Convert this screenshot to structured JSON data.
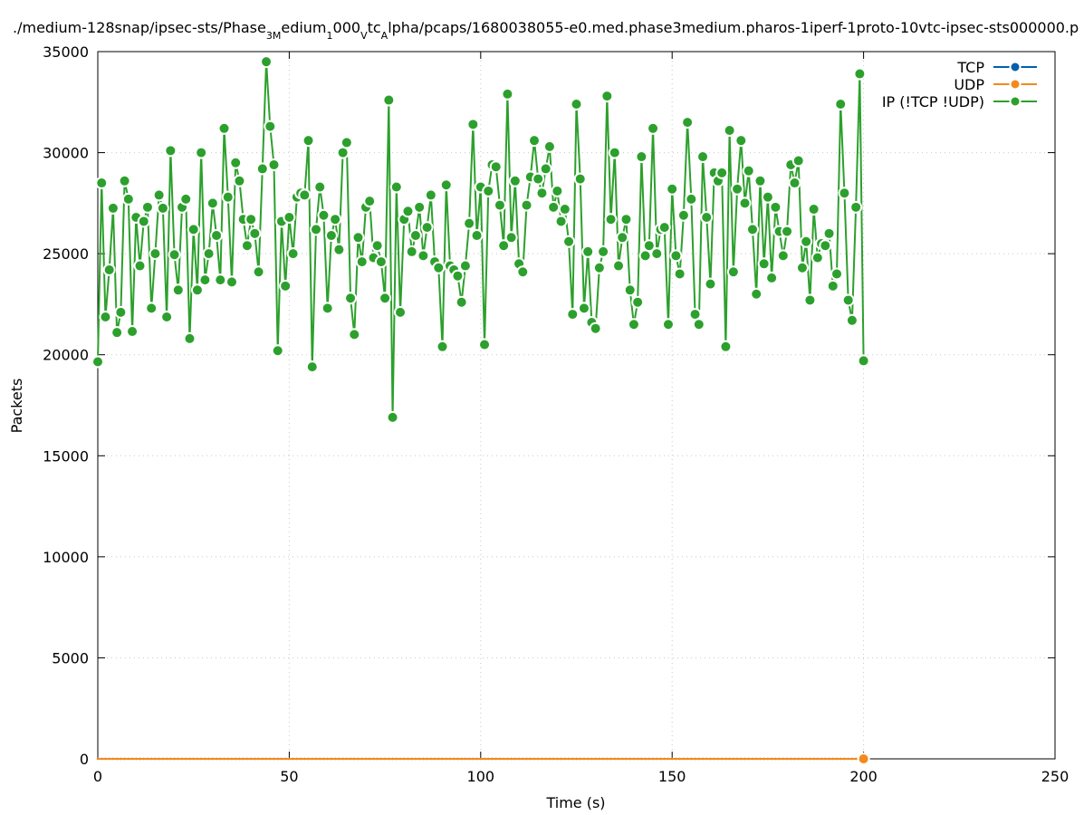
{
  "chart_data": {
    "type": "line",
    "title_parts": [
      {
        "text": "./medium-128snap/ipsec-sts/Phase"
      },
      {
        "text": "3M",
        "sub": true
      },
      {
        "text": "edium"
      },
      {
        "text": "1",
        "sub": true
      },
      {
        "text": "000"
      },
      {
        "text": "V",
        "sub": true
      },
      {
        "text": "tc"
      },
      {
        "text": "A",
        "sub": true
      },
      {
        "text": "lpha/pcaps/1680038055-e0.med.phase3medium.pharos-1iperf-1proto-10vtc-ipsec-sts000000.p"
      }
    ],
    "x_label": "Time (s)",
    "y_label": "Packets",
    "xlim": [
      0,
      250
    ],
    "xticks": [
      0,
      50,
      100,
      150,
      200,
      250
    ],
    "ylim": [
      0,
      35000
    ],
    "yticks": [
      0,
      5000,
      10000,
      15000,
      20000,
      25000,
      30000,
      35000
    ],
    "grid": true,
    "legend": "top-right",
    "x": [
      0,
      1,
      2,
      3,
      4,
      5,
      6,
      7,
      8,
      9,
      10,
      11,
      12,
      13,
      14,
      15,
      16,
      17,
      18,
      19,
      20,
      21,
      22,
      23,
      24,
      25,
      26,
      27,
      28,
      29,
      30,
      31,
      32,
      33,
      34,
      35,
      36,
      37,
      38,
      39,
      40,
      41,
      42,
      43,
      44,
      45,
      46,
      47,
      48,
      49,
      50,
      51,
      52,
      53,
      54,
      55,
      56,
      57,
      58,
      59,
      60,
      61,
      62,
      63,
      64,
      65,
      66,
      67,
      68,
      69,
      70,
      71,
      72,
      73,
      74,
      75,
      76,
      77,
      78,
      79,
      80,
      81,
      82,
      83,
      84,
      85,
      86,
      87,
      88,
      89,
      90,
      91,
      92,
      93,
      94,
      95,
      96,
      97,
      98,
      99,
      100,
      101,
      102,
      103,
      104,
      105,
      106,
      107,
      108,
      109,
      110,
      111,
      112,
      113,
      114,
      115,
      116,
      117,
      118,
      119,
      120,
      121,
      122,
      123,
      124,
      125,
      126,
      127,
      128,
      129,
      130,
      131,
      132,
      133,
      134,
      135,
      136,
      137,
      138,
      139,
      140,
      141,
      142,
      143,
      144,
      145,
      146,
      147,
      148,
      149,
      150,
      151,
      152,
      153,
      154,
      155,
      156,
      157,
      158,
      159,
      160,
      161,
      162,
      163,
      164,
      165,
      166,
      167,
      168,
      169,
      170,
      171,
      172,
      173,
      174,
      175,
      176,
      177,
      178,
      179,
      180,
      181,
      182,
      183,
      184,
      185,
      186,
      187,
      188,
      189,
      190,
      191,
      192,
      193,
      194,
      195,
      196,
      197,
      198,
      199,
      200
    ],
    "series": [
      {
        "name": "TCP",
        "color": "#0060ad",
        "values": [
          0,
          0,
          0,
          0,
          0,
          0,
          0,
          0,
          0,
          0,
          0,
          0,
          0,
          0,
          0,
          0,
          0,
          0,
          0,
          0,
          0,
          0,
          0,
          0,
          0,
          0,
          0,
          0,
          0,
          0,
          0,
          0,
          0,
          0,
          0,
          0,
          0,
          0,
          0,
          0,
          0,
          0,
          0,
          0,
          0,
          0,
          0,
          0,
          0,
          0,
          0,
          0,
          0,
          0,
          0,
          0,
          0,
          0,
          0,
          0,
          0,
          0,
          0,
          0,
          0,
          0,
          0,
          0,
          0,
          0,
          0,
          0,
          0,
          0,
          0,
          0,
          0,
          0,
          0,
          0,
          0,
          0,
          0,
          0,
          0,
          0,
          0,
          0,
          0,
          0,
          0,
          0,
          0,
          0,
          0,
          0,
          0,
          0,
          0,
          0,
          0,
          0,
          0,
          0,
          0,
          0,
          0,
          0,
          0,
          0,
          0,
          0,
          0,
          0,
          0,
          0,
          0,
          0,
          0,
          0,
          0,
          0,
          0,
          0,
          0,
          0,
          0,
          0,
          0,
          0,
          0,
          0,
          0,
          0,
          0,
          0,
          0,
          0,
          0,
          0,
          0,
          0,
          0,
          0,
          0,
          0,
          0,
          0,
          0,
          0,
          0,
          0,
          0,
          0,
          0,
          0,
          0,
          0,
          0,
          0,
          0,
          0,
          0,
          0,
          0,
          0,
          0,
          0,
          0,
          0,
          0,
          0,
          0,
          0,
          0,
          0,
          0,
          0,
          0,
          0,
          0,
          0,
          0,
          0,
          0,
          0,
          0,
          0,
          0,
          0,
          0,
          0,
          0,
          0,
          0,
          0,
          0,
          0,
          0,
          0,
          0
        ]
      },
      {
        "name": "UDP",
        "color": "#f28a1c",
        "values": [
          0,
          0,
          0,
          0,
          0,
          0,
          0,
          0,
          0,
          0,
          0,
          0,
          0,
          0,
          0,
          0,
          0,
          0,
          0,
          0,
          0,
          0,
          0,
          0,
          0,
          0,
          0,
          0,
          0,
          0,
          0,
          0,
          0,
          0,
          0,
          0,
          0,
          0,
          0,
          0,
          0,
          0,
          0,
          0,
          0,
          0,
          0,
          0,
          0,
          0,
          0,
          0,
          0,
          0,
          0,
          0,
          0,
          0,
          0,
          0,
          0,
          0,
          0,
          0,
          0,
          0,
          0,
          0,
          0,
          0,
          0,
          0,
          0,
          0,
          0,
          0,
          0,
          0,
          0,
          0,
          0,
          0,
          0,
          0,
          0,
          0,
          0,
          0,
          0,
          0,
          0,
          0,
          0,
          0,
          0,
          0,
          0,
          0,
          0,
          0,
          0,
          0,
          0,
          0,
          0,
          0,
          0,
          0,
          0,
          0,
          0,
          0,
          0,
          0,
          0,
          0,
          0,
          0,
          0,
          0,
          0,
          0,
          0,
          0,
          0,
          0,
          0,
          0,
          0,
          0,
          0,
          0,
          0,
          0,
          0,
          0,
          0,
          0,
          0,
          0,
          0,
          0,
          0,
          0,
          0,
          0,
          0,
          0,
          0,
          0,
          0,
          0,
          0,
          0,
          0,
          0,
          0,
          0,
          0,
          0,
          0,
          0,
          0,
          0,
          0,
          0,
          0,
          0,
          0,
          0,
          0,
          0,
          0,
          0,
          0,
          0,
          0,
          0,
          0,
          0,
          0,
          0,
          0,
          0,
          0,
          0,
          0,
          0,
          0,
          0,
          0,
          0,
          0,
          0,
          0,
          0,
          0,
          0,
          0,
          0,
          0
        ]
      },
      {
        "name": "IP (!TCP  !UDP)",
        "color": "#2ca02c",
        "values": [
          19650,
          28500,
          21870,
          24200,
          27250,
          21100,
          22100,
          28600,
          27700,
          21150,
          26800,
          24400,
          26600,
          27300,
          22300,
          25000,
          27900,
          27250,
          21870,
          30100,
          24950,
          23200,
          27300,
          27700,
          20800,
          26200,
          23200,
          30000,
          23700,
          25000,
          27500,
          25900,
          23700,
          31200,
          27800,
          23600,
          29500,
          28600,
          26700,
          25400,
          26700,
          26000,
          24100,
          29200,
          34500,
          31300,
          29400,
          20200,
          26600,
          23400,
          26800,
          25000,
          27800,
          28000,
          27900,
          30600,
          19400,
          26200,
          28300,
          26900,
          22300,
          25900,
          26700,
          25200,
          30000,
          30500,
          22800,
          21000,
          25800,
          24600,
          27300,
          27600,
          24800,
          25400,
          24600,
          22800,
          32600,
          16900,
          28300,
          22100,
          26700,
          27100,
          25100,
          25900,
          27300,
          24900,
          26300,
          27900,
          24600,
          24300,
          20400,
          28400,
          24400,
          24200,
          23900,
          22600,
          24400,
          26500,
          31400,
          25900,
          28300,
          20500,
          28100,
          29400,
          29300,
          27400,
          25400,
          32900,
          25800,
          28600,
          24500,
          24100,
          27400,
          28800,
          30600,
          28700,
          28000,
          29200,
          30300,
          27300,
          28100,
          26600,
          27200,
          25600,
          22000,
          32400,
          28700,
          22300,
          25100,
          21600,
          21300,
          24300,
          25100,
          32800,
          26700,
          30000,
          24400,
          25800,
          26700,
          23200,
          21500,
          22600,
          29800,
          24900,
          25400,
          31200,
          25000,
          26200,
          26300,
          21500,
          28200,
          24900,
          24000,
          26900,
          31500,
          27700,
          22000,
          21500,
          29800,
          26800,
          23500,
          29000,
          28600,
          29000,
          20400,
          31100,
          24100,
          28200,
          30600,
          27500,
          29100,
          26200,
          23000,
          28600,
          24500,
          27800,
          23800,
          27300,
          26100,
          24900,
          26100,
          29400,
          28500,
          29600,
          24300,
          25600,
          22700,
          27200,
          24800,
          25500,
          25400,
          26000,
          23400,
          24000,
          32400,
          28000,
          22700,
          21700,
          27300,
          33900,
          19700
        ]
      }
    ]
  }
}
